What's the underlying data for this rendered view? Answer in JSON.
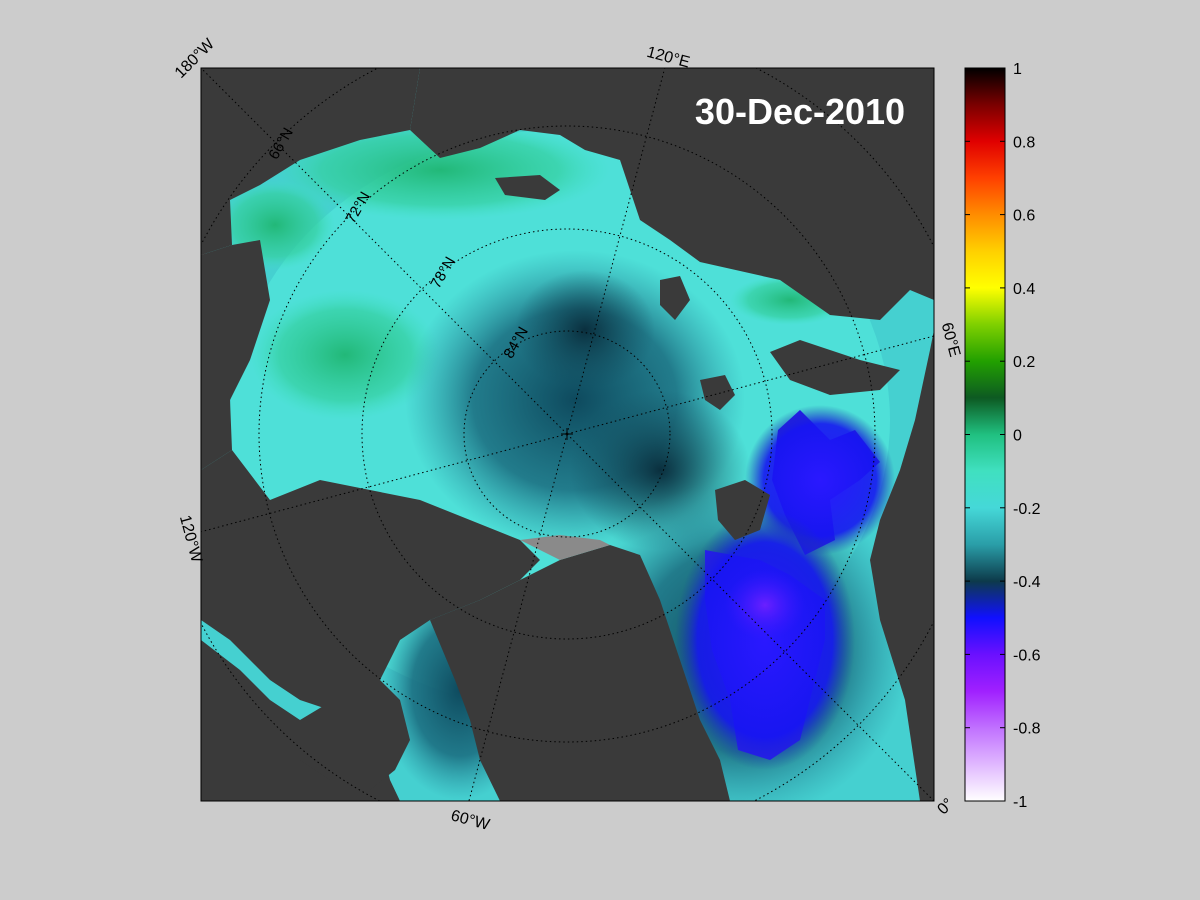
{
  "map": {
    "date": "30-Dec-2010",
    "projection": "north-polar-stereographic",
    "land_color": "#3a3a3a",
    "coast_fringe_color": "#8a8a8a",
    "graticule_color": "#000000",
    "longitude_labels": [
      {
        "text": "180°W",
        "lon": 180
      },
      {
        "text": "120°E",
        "lon": 120
      },
      {
        "text": "60°E",
        "lon": 60
      },
      {
        "text": "0°",
        "lon": 0
      },
      {
        "text": "60°W",
        "lon": -60
      },
      {
        "text": "120°W",
        "lon": -120
      }
    ],
    "latitude_labels": [
      {
        "text": "66°N",
        "lat": 66
      },
      {
        "text": "72°N",
        "lat": 72
      },
      {
        "text": "78°N",
        "lat": 78
      },
      {
        "text": "84°N",
        "lat": 84
      }
    ]
  },
  "colorbar": {
    "min": -1,
    "max": 1,
    "tick_labels": [
      "1",
      "0.8",
      "0.6",
      "0.4",
      "0.2",
      "0",
      "-0.2",
      "-0.4",
      "-0.6",
      "-0.8",
      "-1"
    ],
    "tick_values": [
      1,
      0.8,
      0.6,
      0.4,
      0.2,
      0,
      -0.2,
      -0.4,
      -0.6,
      -0.8,
      -1
    ],
    "colormap": [
      {
        "value": 1,
        "color": "#000000"
      },
      {
        "value": 0.9,
        "color": "#7a0000"
      },
      {
        "value": 0.8,
        "color": "#e00000"
      },
      {
        "value": 0.7,
        "color": "#ff4000"
      },
      {
        "value": 0.6,
        "color": "#ff8c00"
      },
      {
        "value": 0.5,
        "color": "#ffd000"
      },
      {
        "value": 0.4,
        "color": "#ffff00"
      },
      {
        "value": 0.3,
        "color": "#7fd000"
      },
      {
        "value": 0.2,
        "color": "#22a000"
      },
      {
        "value": 0.1,
        "color": "#0d5a22"
      },
      {
        "value": 0,
        "color": "#20c080"
      },
      {
        "value": -0.1,
        "color": "#40e0c0"
      },
      {
        "value": -0.2,
        "color": "#45d8d8"
      },
      {
        "value": -0.3,
        "color": "#2a9ea8"
      },
      {
        "value": -0.4,
        "color": "#0d3a4a"
      },
      {
        "value": -0.5,
        "color": "#1010ff"
      },
      {
        "value": -0.6,
        "color": "#6a10ff"
      },
      {
        "value": -0.7,
        "color": "#a020ff"
      },
      {
        "value": -0.8,
        "color": "#c070ff"
      },
      {
        "value": -0.9,
        "color": "#e0b8ff"
      },
      {
        "value": -1,
        "color": "#ffffff"
      }
    ]
  }
}
